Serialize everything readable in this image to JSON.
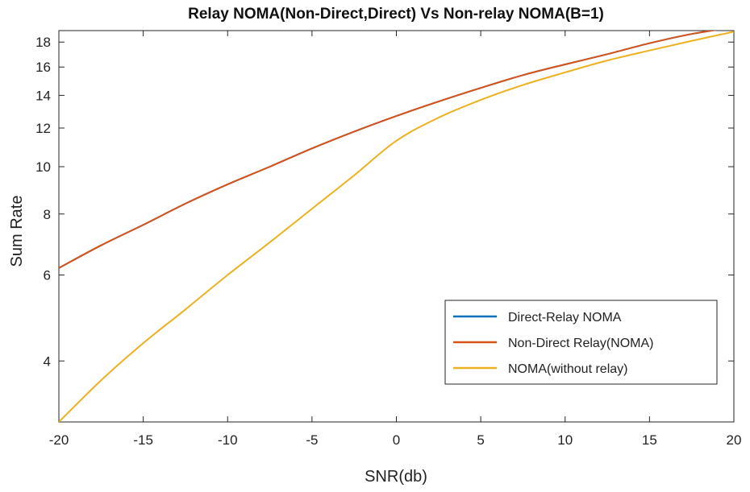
{
  "chart_data": {
    "type": "line",
    "title": "Relay NOMA(Non-Direct,Direct) Vs Non-relay NOMA(B=1)",
    "xlabel": "SNR(db)",
    "ylabel": "Sum Rate",
    "xlim": [
      -20,
      20
    ],
    "ylim": [
      3,
      19
    ],
    "yscale": "log",
    "xticks": [
      -20,
      -15,
      -10,
      -5,
      0,
      5,
      10,
      15,
      20
    ],
    "xtick_labels": [
      "-20",
      "-15",
      "-10",
      "-5",
      "0",
      "5",
      "10",
      "15",
      "20"
    ],
    "yticks": [
      4,
      6,
      8,
      10,
      12,
      14,
      16,
      18
    ],
    "ytick_labels": [
      "4",
      "6",
      "8",
      "10",
      "12",
      "14",
      "16",
      "18"
    ],
    "grid": false,
    "legend_position": "lower-right",
    "x": [
      -20,
      -17.5,
      -15,
      -12.5,
      -10,
      -7.5,
      -5,
      -2.5,
      0,
      2.5,
      5,
      7.5,
      10,
      12.5,
      15,
      17.5,
      20
    ],
    "series": [
      {
        "name": "Direct-Relay NOMA",
        "color": "#0072BD",
        "values": [
          6.2,
          6.9,
          7.6,
          8.4,
          9.2,
          10.0,
          10.9,
          11.8,
          12.7,
          13.6,
          14.5,
          15.4,
          16.2,
          17.0,
          17.9,
          18.7,
          19.3
        ]
      },
      {
        "name": "Non-Direct Relay(NOMA)",
        "color": "#D95319",
        "values": [
          6.2,
          6.9,
          7.6,
          8.4,
          9.2,
          10.0,
          10.9,
          11.8,
          12.7,
          13.6,
          14.5,
          15.4,
          16.2,
          17.0,
          17.9,
          18.7,
          19.3
        ]
      },
      {
        "name": "NOMA(without relay)",
        "color": "#EDB120",
        "values": [
          3.0,
          3.65,
          4.35,
          5.1,
          6.0,
          7.0,
          8.2,
          9.6,
          11.3,
          12.6,
          13.7,
          14.7,
          15.6,
          16.5,
          17.3,
          18.1,
          18.9
        ]
      }
    ]
  }
}
